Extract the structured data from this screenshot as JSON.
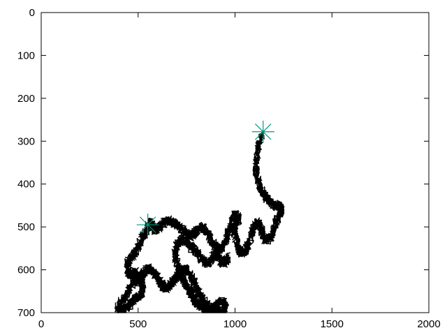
{
  "chart_data": {
    "type": "line",
    "title": "",
    "xlabel": "",
    "ylabel": "",
    "xlim": [
      0,
      2000
    ],
    "ylim": [
      0,
      700
    ],
    "y_inverted": true,
    "grid": false,
    "x_ticks": [
      0,
      500,
      1000,
      1500,
      2000
    ],
    "y_ticks": [
      0,
      100,
      200,
      300,
      400,
      500,
      600,
      700
    ],
    "series": [
      {
        "kind": "random-walk-path",
        "color": "#000000",
        "points": [
          [
            1140,
            280
          ],
          [
            1128,
            300
          ],
          [
            1118,
            318
          ],
          [
            1112,
            340
          ],
          [
            1108,
            362
          ],
          [
            1112,
            382
          ],
          [
            1122,
            398
          ],
          [
            1132,
            412
          ],
          [
            1145,
            424
          ],
          [
            1160,
            432
          ],
          [
            1178,
            440
          ],
          [
            1195,
            448
          ],
          [
            1215,
            452
          ],
          [
            1232,
            448
          ],
          [
            1238,
            462
          ],
          [
            1225,
            478
          ],
          [
            1210,
            490
          ],
          [
            1198,
            508
          ],
          [
            1185,
            524
          ],
          [
            1168,
            532
          ],
          [
            1150,
            528
          ],
          [
            1138,
            510
          ],
          [
            1128,
            492
          ],
          [
            1112,
            488
          ],
          [
            1098,
            500
          ],
          [
            1085,
            518
          ],
          [
            1072,
            538
          ],
          [
            1058,
            552
          ],
          [
            1040,
            562
          ],
          [
            1025,
            558
          ],
          [
            1012,
            540
          ],
          [
            1000,
            522
          ],
          [
            990,
            505
          ],
          [
            1002,
            492
          ],
          [
            1018,
            484
          ],
          [
            1008,
            470
          ],
          [
            992,
            476
          ],
          [
            978,
            490
          ],
          [
            968,
            510
          ],
          [
            955,
            530
          ],
          [
            940,
            545
          ],
          [
            922,
            552
          ],
          [
            905,
            548
          ],
          [
            888,
            540
          ],
          [
            872,
            528
          ],
          [
            858,
            515
          ],
          [
            842,
            505
          ],
          [
            825,
            500
          ],
          [
            808,
            506
          ],
          [
            792,
            515
          ],
          [
            775,
            522
          ],
          [
            758,
            520
          ],
          [
            742,
            512
          ],
          [
            725,
            505
          ],
          [
            708,
            498
          ],
          [
            690,
            492
          ],
          [
            672,
            488
          ],
          [
            655,
            485
          ],
          [
            638,
            490
          ],
          [
            620,
            496
          ],
          [
            605,
            502
          ],
          [
            590,
            508
          ],
          [
            575,
            500
          ],
          [
            565,
            490
          ],
          [
            555,
            495
          ],
          [
            545,
            508
          ],
          [
            530,
            520
          ],
          [
            515,
            532
          ],
          [
            502,
            545
          ],
          [
            490,
            558
          ],
          [
            478,
            566
          ],
          [
            462,
            572
          ],
          [
            448,
            580
          ],
          [
            440,
            595
          ],
          [
            452,
            608
          ],
          [
            468,
            612
          ],
          [
            485,
            605
          ],
          [
            500,
            612
          ],
          [
            515,
            625
          ],
          [
            525,
            640
          ],
          [
            518,
            655
          ],
          [
            502,
            664
          ],
          [
            485,
            668
          ],
          [
            468,
            676
          ],
          [
            452,
            684
          ],
          [
            438,
            690
          ],
          [
            420,
            694
          ],
          [
            402,
            696
          ],
          [
            395,
            688
          ],
          [
            410,
            678
          ],
          [
            428,
            668
          ],
          [
            442,
            656
          ],
          [
            455,
            644
          ],
          [
            468,
            632
          ],
          [
            482,
            622
          ],
          [
            498,
            628
          ],
          [
            512,
            618
          ],
          [
            528,
            608
          ],
          [
            545,
            600
          ],
          [
            562,
            596
          ],
          [
            578,
            602
          ],
          [
            592,
            612
          ],
          [
            605,
            622
          ],
          [
            618,
            632
          ],
          [
            632,
            640
          ],
          [
            648,
            644
          ],
          [
            662,
            638
          ],
          [
            676,
            630
          ],
          [
            690,
            620
          ],
          [
            705,
            612
          ],
          [
            720,
            604
          ],
          [
            736,
            598
          ],
          [
            752,
            602
          ],
          [
            768,
            610
          ],
          [
            782,
            622
          ],
          [
            795,
            636
          ],
          [
            808,
            648
          ],
          [
            822,
            660
          ],
          [
            835,
            672
          ],
          [
            850,
            680
          ],
          [
            866,
            686
          ],
          [
            882,
            690
          ],
          [
            898,
            684
          ],
          [
            912,
            676
          ],
          [
            928,
            672
          ],
          [
            944,
            678
          ],
          [
            952,
            690
          ],
          [
            938,
            698
          ],
          [
            920,
            696
          ],
          [
            902,
            698
          ],
          [
            885,
            696
          ],
          [
            868,
            698
          ],
          [
            852,
            694
          ],
          [
            835,
            690
          ],
          [
            820,
            684
          ],
          [
            806,
            678
          ],
          [
            792,
            670
          ],
          [
            778,
            662
          ],
          [
            765,
            650
          ],
          [
            752,
            640
          ],
          [
            740,
            628
          ],
          [
            728,
            616
          ],
          [
            716,
            604
          ],
          [
            705,
            590
          ],
          [
            695,
            576
          ],
          [
            690,
            560
          ],
          [
            698,
            545
          ],
          [
            712,
            534
          ],
          [
            728,
            528
          ],
          [
            745,
            532
          ],
          [
            760,
            540
          ],
          [
            775,
            548
          ],
          [
            792,
            552
          ],
          [
            808,
            560
          ],
          [
            822,
            572
          ],
          [
            838,
            580
          ],
          [
            855,
            585
          ],
          [
            872,
            580
          ],
          [
            886,
            570
          ],
          [
            898,
            560
          ],
          [
            912,
            566
          ],
          [
            925,
            578
          ],
          [
            938,
            586
          ],
          [
            952,
            580
          ],
          [
            965,
            570
          ]
        ]
      }
    ],
    "markers": [
      {
        "x": 1145,
        "y": 278,
        "symbol": "asterisk",
        "color": "#00997a"
      },
      {
        "x": 550,
        "y": 495,
        "symbol": "asterisk",
        "color": "#00997a"
      }
    ]
  }
}
